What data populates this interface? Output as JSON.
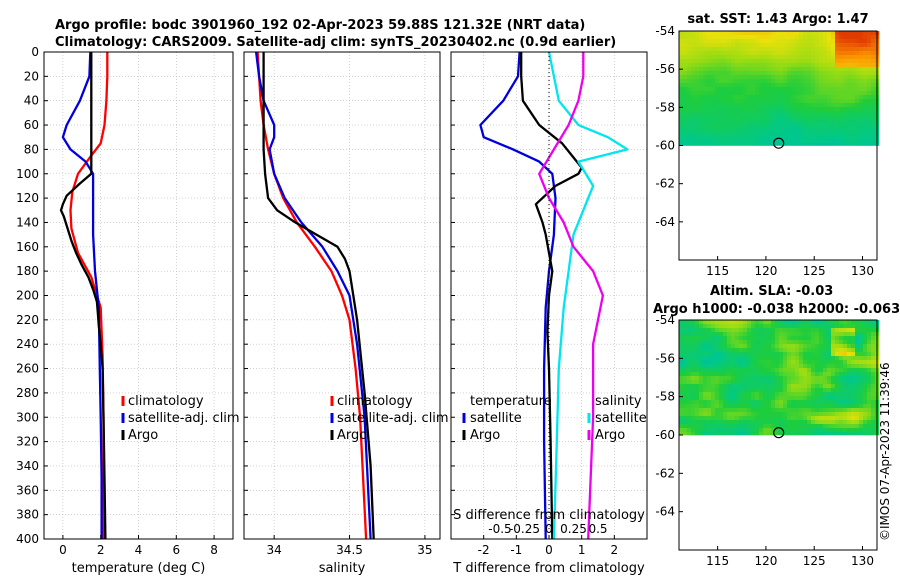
{
  "header": {
    "title_line1": "Argo profile: bodc 3901960_192 02-Apr-2023 59.88S 121.32E (NRT data)",
    "title_line2": "Climatology: CARS2009. Satellite-adj clim: synTS_20230402.nc (0.9d earlier)",
    "copyright": "©IMOS 07-Apr-2023 11:39:46"
  },
  "colors": {
    "climatology": "#ff0000",
    "satellite": "#0000dd",
    "argo": "#000000",
    "sat_salinity": "#00e5ee",
    "argo_salinity": "#ee00ee"
  },
  "chart_data": [
    {
      "type": "line",
      "id": "temperature",
      "xlabel": "temperature (deg C)",
      "ylabel": "",
      "xlim": [
        -1,
        9
      ],
      "ylim": [
        400,
        0
      ],
      "xticks": [
        0,
        2,
        4,
        6,
        8
      ],
      "xtick_labels": [
        "0",
        "2",
        "4",
        "6",
        "8"
      ],
      "yticks": [
        0,
        20,
        40,
        60,
        80,
        100,
        120,
        140,
        160,
        180,
        200,
        220,
        240,
        260,
        280,
        300,
        320,
        340,
        360,
        380,
        400
      ],
      "ytick_labels": [
        "0",
        "20",
        "40",
        "60",
        "80",
        "100",
        "120",
        "140",
        "160",
        "180",
        "200",
        "220",
        "240",
        "260",
        "280",
        "300",
        "320",
        "340",
        "360",
        "380",
        "400"
      ],
      "legend": [
        "climatology",
        "satellite-adj. clim",
        "Argo"
      ],
      "series": [
        {
          "name": "climatology",
          "color": "#ff0000",
          "x": [
            2.35,
            2.35,
            2.3,
            2.2,
            2.0,
            1.5,
            0.8,
            0.5,
            0.4,
            0.45,
            0.8,
            1.5,
            2.0,
            2.1,
            2.15,
            2.15,
            2.15
          ],
          "y": [
            0,
            20,
            40,
            60,
            75,
            85,
            100,
            115,
            130,
            145,
            165,
            185,
            210,
            250,
            300,
            350,
            400
          ]
        },
        {
          "name": "satellite-adj. clim",
          "color": "#0000dd",
          "x": [
            1.45,
            1.4,
            0.9,
            0.2,
            0.0,
            0.4,
            1.2,
            1.6,
            1.6,
            1.6,
            1.7,
            1.9,
            1.95,
            2.0,
            2.05,
            2.05
          ],
          "y": [
            0,
            20,
            40,
            60,
            70,
            80,
            90,
            100,
            120,
            150,
            180,
            210,
            260,
            300,
            350,
            400
          ]
        },
        {
          "name": "Argo",
          "color": "#000000",
          "x": [
            1.5,
            1.5,
            1.5,
            1.5,
            0.9,
            0.2,
            0.0,
            -0.1,
            0.05,
            0.25,
            0.45,
            0.7,
            1.0,
            1.35,
            1.6,
            1.8,
            1.85,
            1.9,
            2.0,
            2.1,
            2.15,
            2.2,
            2.25
          ],
          "y": [
            0,
            40,
            80,
            100,
            108,
            118,
            125,
            130,
            135,
            145,
            155,
            165,
            175,
            185,
            195,
            205,
            215,
            225,
            240,
            260,
            300,
            350,
            400
          ]
        }
      ]
    },
    {
      "type": "line",
      "id": "salinity",
      "xlabel": "salinity",
      "ylabel": "",
      "xlim": [
        33.8,
        35.1
      ],
      "ylim": [
        400,
        0
      ],
      "xticks": [
        34,
        34.5,
        35
      ],
      "xtick_labels": [
        "34",
        "34.5",
        "35"
      ],
      "legend": [
        "climatology",
        "satellite-adj. clim",
        "Argo"
      ],
      "series": [
        {
          "name": "climatology",
          "color": "#ff0000",
          "x": [
            33.89,
            33.9,
            33.91,
            33.93,
            33.96,
            34.0,
            34.06,
            34.15,
            34.27,
            34.38,
            34.45,
            34.5,
            34.54,
            34.57,
            34.59,
            34.61
          ],
          "y": [
            0,
            20,
            40,
            60,
            80,
            100,
            120,
            140,
            160,
            180,
            200,
            220,
            260,
            300,
            350,
            400
          ]
        },
        {
          "name": "satellite-adj. clim",
          "color": "#0000dd",
          "x": [
            33.88,
            33.9,
            33.93,
            34.0,
            34.0,
            33.97,
            34.0,
            34.07,
            34.18,
            34.32,
            34.42,
            34.5,
            34.55,
            34.6,
            34.62,
            34.64
          ],
          "y": [
            0,
            20,
            40,
            60,
            70,
            80,
            100,
            120,
            140,
            160,
            180,
            200,
            240,
            300,
            350,
            400
          ]
        },
        {
          "name": "Argo",
          "color": "#000000",
          "x": [
            33.93,
            33.93,
            33.93,
            33.93,
            33.94,
            33.96,
            34.02,
            34.14,
            34.28,
            34.42,
            34.47,
            34.5,
            34.55,
            34.6,
            34.64,
            34.66
          ],
          "y": [
            0,
            20,
            60,
            80,
            100,
            120,
            130,
            140,
            150,
            160,
            170,
            180,
            220,
            280,
            340,
            400
          ]
        }
      ]
    },
    {
      "type": "line",
      "id": "difference",
      "xlabel": "T difference from climatology",
      "xlabel_top": "S difference from climatology",
      "xlim": [
        -3,
        3
      ],
      "ylim": [
        400,
        0
      ],
      "xticks": [
        -2,
        -1,
        0,
        1,
        2
      ],
      "xtick_labels": [
        "-2",
        "-1",
        "0",
        "1",
        "2"
      ],
      "sticks": [
        -0.5,
        -0.25,
        0,
        0.25,
        0.5
      ],
      "stick_labels": [
        "-0.5",
        "-0.25",
        "0",
        "0.25",
        "0.5"
      ],
      "slim": [
        -1,
        1
      ],
      "legend_temperature": {
        "heading": "temperature",
        "items": [
          "satellite",
          "Argo"
        ]
      },
      "legend_salinity": {
        "heading": "salinity",
        "items": [
          "satellite",
          "Argo"
        ]
      },
      "series": [
        {
          "name": "temperature satellite",
          "color": "#0000dd",
          "x": [
            -0.9,
            -0.95,
            -1.4,
            -2.1,
            -2.0,
            -1.1,
            -0.3,
            0.1,
            0.2,
            0.15,
            0.0,
            -0.1,
            -0.15,
            -0.15,
            -0.1
          ],
          "y": [
            0,
            20,
            40,
            60,
            70,
            80,
            90,
            100,
            120,
            150,
            180,
            210,
            260,
            320,
            400
          ]
        },
        {
          "name": "temperature Argo",
          "color": "#000000",
          "x": [
            -0.85,
            -0.85,
            -0.8,
            -0.3,
            0.4,
            0.7,
            1.0,
            0.9,
            0.2,
            -0.4,
            -0.2,
            -0.1,
            0.0,
            0.1,
            0.0,
            -0.05,
            0.0,
            0.05,
            0.1
          ],
          "y": [
            0,
            20,
            40,
            60,
            75,
            85,
            95,
            100,
            110,
            125,
            140,
            150,
            165,
            180,
            200,
            230,
            260,
            320,
            400
          ]
        },
        {
          "name": "salinity satellite",
          "color": "#00e5ee",
          "x": [
            0.0,
            0.05,
            0.1,
            0.3,
            0.6,
            0.8,
            0.3,
            0.45,
            0.35,
            0.25,
            0.2,
            0.15,
            0.1,
            0.08,
            0.05
          ],
          "y": [
            0,
            20,
            40,
            60,
            70,
            80,
            90,
            110,
            130,
            150,
            180,
            210,
            260,
            320,
            400
          ]
        },
        {
          "name": "salinity Argo",
          "color": "#ee00ee",
          "x": [
            0.35,
            0.35,
            0.3,
            0.2,
            0.05,
            -0.1,
            0.0,
            0.15,
            0.25,
            0.45,
            0.55,
            0.5,
            0.45,
            0.45,
            0.4
          ],
          "y": [
            0,
            20,
            40,
            60,
            80,
            100,
            120,
            140,
            160,
            180,
            200,
            220,
            240,
            300,
            400
          ]
        }
      ]
    },
    {
      "type": "heatmap",
      "id": "sst",
      "title": "sat. SST: 1.43 Argo: 1.47",
      "xlim": [
        111,
        131.5
      ],
      "ylim": [
        -66,
        -54
      ],
      "xticks": [
        115,
        120,
        125,
        130
      ],
      "xtick_labels": [
        "115",
        "120",
        "125",
        "130"
      ],
      "yticks": [
        -54,
        -56,
        -58,
        -60,
        -62,
        -64
      ],
      "ytick_labels": [
        "-54",
        "-56",
        "-58",
        "-60",
        "-62",
        "-64"
      ],
      "data_lat_min": -60,
      "marker": {
        "lon": 121.32,
        "lat": -59.88
      }
    },
    {
      "type": "heatmap",
      "id": "sla",
      "title": "Altim. SLA: -0.03",
      "subtitle": "Argo h1000: -0.038 h2000: -0.063",
      "xlim": [
        111,
        131.5
      ],
      "ylim": [
        -66,
        -54
      ],
      "xticks": [
        115,
        120,
        125,
        130
      ],
      "xtick_labels": [
        "115",
        "120",
        "125",
        "130"
      ],
      "yticks": [
        -54,
        -56,
        -58,
        -60,
        -62,
        -64
      ],
      "ytick_labels": [
        "-54",
        "-56",
        "-58",
        "-60",
        "-62",
        "-64"
      ],
      "data_lat_min": -60,
      "marker": {
        "lon": 121.32,
        "lat": -59.88
      }
    }
  ]
}
